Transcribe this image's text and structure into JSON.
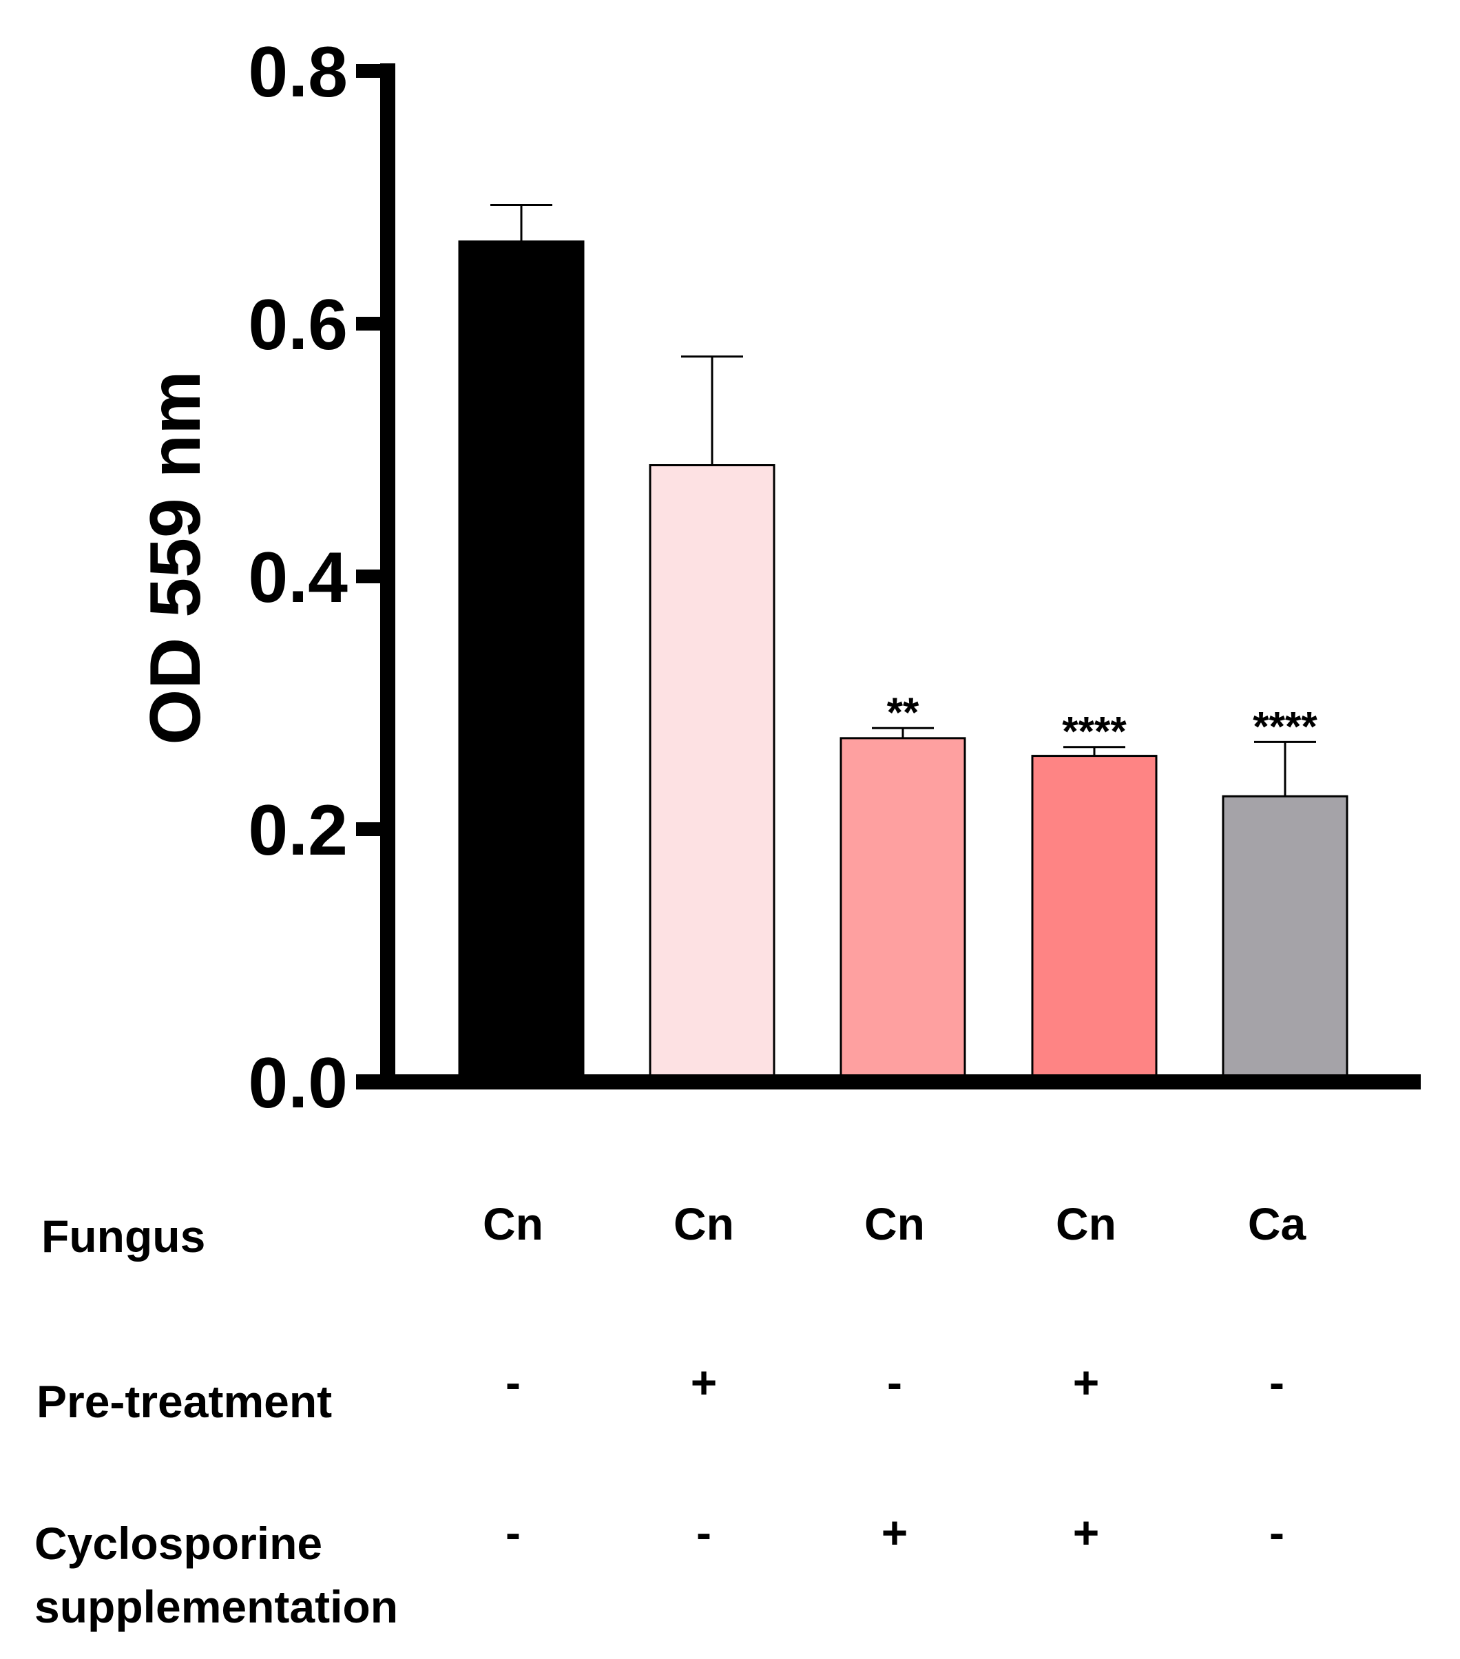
{
  "chart_data": {
    "type": "bar",
    "title": "",
    "xlabel": "",
    "ylabel": "OD 559 nm",
    "ylim": [
      0,
      0.8
    ],
    "yticks": [
      "0.0",
      "0.2",
      "0.4",
      "0.6",
      "0.8"
    ],
    "grid": false,
    "values": [
      0.665,
      0.488,
      0.272,
      0.258,
      0.226
    ],
    "errors": [
      0.029,
      0.086,
      0.008,
      0.007,
      0.043
    ],
    "significance": [
      "",
      "",
      "**",
      "****",
      "****"
    ],
    "colors": [
      "#000000",
      "#fde1e3",
      "#fea0a0",
      "#fe8484",
      "#a5a3a8"
    ],
    "conditions": [
      {
        "label": "Fungus",
        "values": [
          "Cn",
          "Cn",
          "Cn",
          "Cn",
          "Ca"
        ]
      },
      {
        "label": "Pre-treatment",
        "values": [
          "-",
          "+",
          "-",
          "+",
          "-"
        ]
      },
      {
        "label_lines": [
          "Cyclosporine",
          "supplementation"
        ],
        "values": [
          "-",
          "-",
          "+",
          "+",
          "-"
        ]
      }
    ]
  }
}
